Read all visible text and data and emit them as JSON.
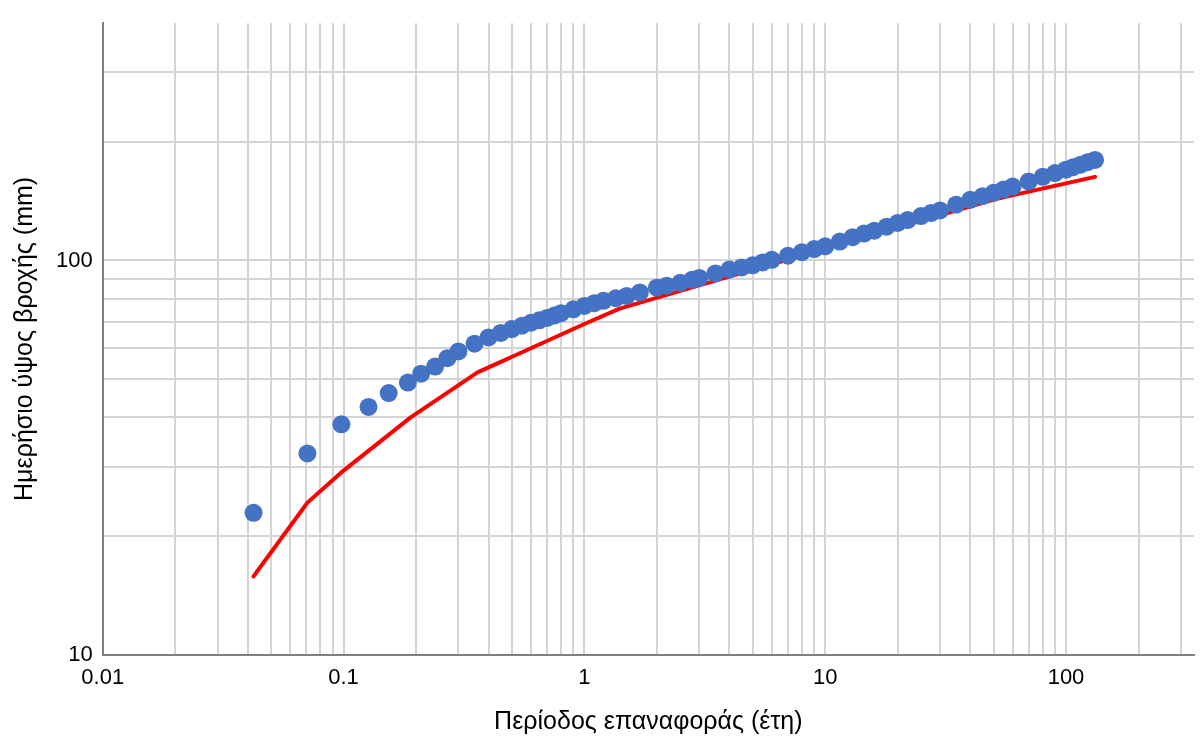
{
  "chart_data": {
    "type": "scatter",
    "xlabel": "Περίοδος επαναφοράς (έτη)",
    "ylabel": "Ημερήσιο ύψος βροχής (mm)",
    "log": "xy",
    "grid": true,
    "legend": false,
    "marker": "circle",
    "xlim": [
      0.01,
      340
    ],
    "ylim": [
      10,
      400
    ],
    "xticks": [
      0.01,
      {
        "value": 0.02,
        "label": null
      },
      {
        "value": 0.03,
        "label": null
      },
      {
        "value": 0.04,
        "label": null
      },
      {
        "value": 0.05,
        "label": null
      },
      {
        "value": 0.06,
        "label": null
      },
      {
        "value": 0.07,
        "label": null
      },
      {
        "value": 0.08,
        "label": null
      },
      {
        "value": 0.09,
        "label": null
      },
      0.1,
      {
        "value": 0.2,
        "label": null
      },
      {
        "value": 0.3,
        "label": null
      },
      {
        "value": 0.4,
        "label": null
      },
      {
        "value": 0.5,
        "label": null
      },
      {
        "value": 0.6,
        "label": null
      },
      {
        "value": 0.7,
        "label": null
      },
      {
        "value": 0.8,
        "label": null
      },
      {
        "value": 0.9,
        "label": null
      },
      1,
      {
        "value": 2,
        "label": null
      },
      {
        "value": 3,
        "label": null
      },
      {
        "value": 4,
        "label": null
      },
      {
        "value": 5,
        "label": null
      },
      {
        "value": 6,
        "label": null
      },
      {
        "value": 7,
        "label": null
      },
      {
        "value": 8,
        "label": null
      },
      {
        "value": 9,
        "label": null
      },
      10,
      {
        "value": 20,
        "label": null
      },
      {
        "value": 30,
        "label": null
      },
      {
        "value": 40,
        "label": null
      },
      {
        "value": 50,
        "label": null
      },
      {
        "value": 60,
        "label": null
      },
      {
        "value": 70,
        "label": null
      },
      {
        "value": 80,
        "label": null
      },
      {
        "value": 90,
        "label": null
      },
      100,
      {
        "value": 200,
        "label": null
      },
      {
        "value": 300,
        "label": null
      }
    ],
    "yticks": [
      10,
      {
        "value": 20,
        "label": null
      },
      {
        "value": 30,
        "label": null
      },
      {
        "value": 40,
        "label": null
      },
      {
        "value": 50,
        "label": null
      },
      {
        "value": 60,
        "label": null
      },
      {
        "value": 70,
        "label": null
      },
      {
        "value": 80,
        "label": null
      },
      {
        "value": 90,
        "label": null
      },
      100,
      {
        "value": 200,
        "label": null
      },
      {
        "value": 300,
        "label": null
      }
    ],
    "series": [
      {
        "type": "line",
        "color": "#ff0000",
        "marker": "none",
        "x": [
          0.0423,
          0.0708,
          0.1,
          0.19,
          0.36,
          1,
          1.4,
          50.6,
          132
        ],
        "values": [
          15.8,
          24.3,
          29.3,
          40,
          52,
          69,
          75.5,
          143,
          163
        ]
      },
      {
        "color": "#4472c4",
        "x": [
          0.0423,
          0.0708,
          0.098,
          0.127,
          0.154,
          0.185,
          0.21,
          0.24,
          0.27,
          0.3,
          0.35,
          0.4,
          0.45,
          0.5,
          0.55,
          0.6,
          0.65,
          0.7,
          0.75,
          0.8,
          0.9,
          1,
          1.1,
          1.2,
          1.35,
          1.5,
          1.7,
          2,
          2.2,
          2.5,
          2.8,
          3,
          3.5,
          4,
          4.5,
          5,
          5.5,
          6,
          7,
          8,
          9,
          10,
          11.5,
          13,
          14.5,
          16,
          18,
          20,
          22,
          25,
          27.5,
          30,
          35,
          40,
          45,
          50,
          55,
          60,
          70,
          80,
          90,
          100,
          107,
          115,
          123,
          132
        ],
        "values": [
          22.9,
          32.4,
          38.4,
          42.5,
          46.1,
          49,
          51.6,
          53.8,
          56.5,
          58.8,
          61.5,
          63.8,
          65.5,
          67,
          68.3,
          69.5,
          70.5,
          71.5,
          72.5,
          73.5,
          75.2,
          76.7,
          77.9,
          79,
          80.2,
          81.3,
          83,
          85.3,
          86.3,
          87.8,
          89.3,
          90.3,
          92.7,
          94.8,
          96,
          97.2,
          98.9,
          100.4,
          102.8,
          105,
          106.9,
          108.6,
          111.7,
          114.6,
          117,
          119,
          121.8,
          124.5,
          126.6,
          129.6,
          131.9,
          134,
          138.5,
          142.5,
          145.6,
          148.5,
          151.3,
          154,
          158.7,
          163,
          166.6,
          170,
          172.5,
          175,
          177.6,
          180
        ]
      }
    ]
  }
}
